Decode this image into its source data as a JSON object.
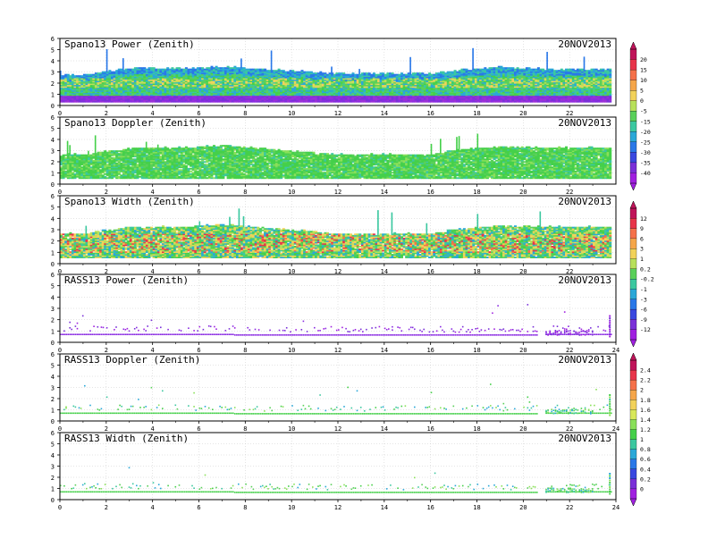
{
  "chart_data": [
    {
      "type": "heatmap",
      "title": "Spano13 Power (Zenith)",
      "date": "20NOV2013",
      "x_ticks": [
        "0",
        "2",
        "4",
        "6",
        "8",
        "10",
        "12",
        "14",
        "16",
        "18",
        "20",
        "22"
      ],
      "y_ticks": [
        "0",
        "1",
        "2",
        "3",
        "4",
        "5",
        "6"
      ],
      "xlim": [
        0,
        24
      ],
      "ylim": [
        0,
        6
      ],
      "grid": true,
      "colorbar": {
        "group": "power",
        "labels": [
          "20",
          "15",
          "10",
          "5",
          "0",
          "-5",
          "-15",
          "-20",
          "-25",
          "-30",
          "-35",
          "-40"
        ]
      },
      "field": {
        "coverage_top_km": [
          [
            0,
            2.7
          ],
          [
            1,
            2.7
          ],
          [
            3,
            3.3
          ],
          [
            5,
            3.3
          ],
          [
            7,
            3.4
          ],
          [
            9,
            3.2
          ],
          [
            12,
            2.8
          ],
          [
            16,
            2.8
          ],
          [
            17,
            3.1
          ],
          [
            19,
            3.4
          ],
          [
            21,
            3.2
          ],
          [
            23.5,
            3.2
          ]
        ],
        "bottom_km": 0.3,
        "dominant": "green/cyan"
      }
    },
    {
      "type": "heatmap",
      "title": "Spano13 Doppler (Zenith)",
      "date": "20NOV2013",
      "x_ticks": [
        "0",
        "2",
        "4",
        "6",
        "8",
        "10",
        "12",
        "14",
        "16",
        "18",
        "20",
        "22"
      ],
      "y_ticks": [
        "0",
        "1",
        "2",
        "3",
        "4",
        "5",
        "6"
      ],
      "xlim": [
        0,
        24
      ],
      "ylim": [
        0,
        6
      ],
      "grid": true,
      "field": {
        "coverage_top_km": [
          [
            0,
            2.6
          ],
          [
            1,
            2.6
          ],
          [
            3,
            3.2
          ],
          [
            5,
            3.2
          ],
          [
            7,
            3.4
          ],
          [
            9,
            3.1
          ],
          [
            12,
            2.6
          ],
          [
            16,
            2.6
          ],
          [
            17,
            3.0
          ],
          [
            19,
            3.3
          ],
          [
            21,
            3.2
          ],
          [
            23.5,
            3.2
          ]
        ],
        "bottom_km": 0.5,
        "dominant": "green"
      }
    },
    {
      "type": "heatmap",
      "title": "Spano13 Width (Zenith)",
      "date": "20NOV2013",
      "x_ticks": [
        "0",
        "2",
        "4",
        "6",
        "8",
        "10",
        "12",
        "14",
        "16",
        "18",
        "20",
        "22"
      ],
      "y_ticks": [
        "0",
        "1",
        "2",
        "3",
        "4",
        "5",
        "6"
      ],
      "xlim": [
        0,
        24
      ],
      "ylim": [
        0,
        6
      ],
      "grid": true,
      "colorbar": {
        "group": "width",
        "labels": [
          "12",
          "9",
          "6",
          "3",
          "1",
          "0.2",
          "-0.2",
          "-1",
          "-3",
          "-6",
          "-9",
          "-12"
        ]
      },
      "field": {
        "coverage_top_km": [
          [
            0,
            2.6
          ],
          [
            1,
            2.6
          ],
          [
            3,
            3.2
          ],
          [
            5,
            3.2
          ],
          [
            7,
            3.4
          ],
          [
            9,
            3.1
          ],
          [
            12,
            2.6
          ],
          [
            16,
            2.6
          ],
          [
            17,
            3.0
          ],
          [
            19,
            3.3
          ],
          [
            21,
            3.2
          ],
          [
            23.5,
            3.2
          ]
        ],
        "bottom_km": 0.5,
        "dominant": "green/yellow/red"
      }
    },
    {
      "type": "heatmap",
      "title": "RASS13 Power (Zenith)",
      "date": "20NOV2013",
      "x_ticks": [
        "0",
        "2",
        "4",
        "6",
        "8",
        "10",
        "12",
        "14",
        "16",
        "18",
        "20",
        "22",
        "24"
      ],
      "y_ticks": [
        "0",
        "1",
        "2",
        "3",
        "4",
        "5",
        "6"
      ],
      "xlim": [
        0,
        24
      ],
      "ylim": [
        0,
        6
      ],
      "grid": true,
      "field": {
        "band_km": 0.7,
        "dominant": "violet"
      }
    },
    {
      "type": "heatmap",
      "title": "RASS13 Doppler (Zenith)",
      "date": "20NOV2013",
      "x_ticks": [
        "0",
        "2",
        "4",
        "6",
        "8",
        "10",
        "12",
        "14",
        "16",
        "18",
        "20",
        "22",
        "24"
      ],
      "y_ticks": [
        "0",
        "1",
        "2",
        "3",
        "4",
        "5",
        "6"
      ],
      "xlim": [
        0,
        24
      ],
      "ylim": [
        0,
        6
      ],
      "grid": true,
      "colorbar": {
        "group": "rass",
        "labels": [
          "2.4",
          "2.2",
          "2",
          "1.8",
          "1.6",
          "1.4",
          "1.2",
          "1",
          "0.8",
          "0.6",
          "0.4",
          "0.2",
          "0"
        ]
      },
      "field": {
        "band_km": 0.7,
        "dominant": "green"
      }
    },
    {
      "type": "heatmap",
      "title": "RASS13 Width (Zenith)",
      "date": "20NOV2013",
      "x_ticks": [
        "0",
        "2",
        "4",
        "6",
        "8",
        "10",
        "12",
        "14",
        "16",
        "18",
        "20",
        "22",
        "24"
      ],
      "y_ticks": [
        "0",
        "1",
        "2",
        "3",
        "4",
        "5",
        "6"
      ],
      "xlim": [
        0,
        24
      ],
      "ylim": [
        0,
        6
      ],
      "grid": true,
      "field": {
        "band_km": 0.7,
        "dominant": "green"
      }
    }
  ],
  "colorbars": {
    "power": {
      "colors": [
        "#c0145a",
        "#e8354a",
        "#f5714a",
        "#f5a64a",
        "#f2d25a",
        "#b8e05a",
        "#5ad05a",
        "#3cc8a0",
        "#2aa8d8",
        "#2a78e8",
        "#3a48e0",
        "#7a30d8",
        "#a020e0"
      ]
    },
    "width": {
      "colors": [
        "#c0145a",
        "#e8354a",
        "#f5714a",
        "#f5a64a",
        "#f2d25a",
        "#b8e05a",
        "#5ad05a",
        "#3cc8a0",
        "#2aa8d8",
        "#2a78e8",
        "#3a48e0",
        "#7a30d8",
        "#a020e0"
      ]
    },
    "rass": {
      "colors": [
        "#c0145a",
        "#e8354a",
        "#f5714a",
        "#f5a64a",
        "#f2d25a",
        "#d8e85a",
        "#8ae05a",
        "#45d04a",
        "#3cc8a0",
        "#2aa8d8",
        "#2a78e8",
        "#3a48e0",
        "#7a30d8",
        "#a020e0"
      ]
    }
  }
}
